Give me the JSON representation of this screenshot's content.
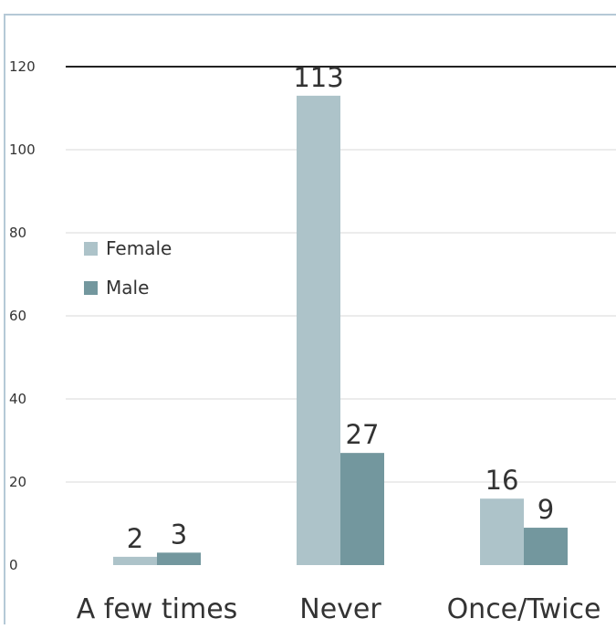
{
  "chart_data": {
    "type": "bar",
    "categories": [
      "A few times",
      "Never",
      "Once/Twice"
    ],
    "series": [
      {
        "name": "Female",
        "values": [
          2,
          113,
          16
        ],
        "color": "#adc3c9"
      },
      {
        "name": "Male",
        "values": [
          3,
          27,
          9
        ],
        "color": "#73979e"
      }
    ],
    "ylim": [
      0,
      120
    ],
    "yticks": [
      0,
      20,
      40,
      60,
      80,
      100,
      120
    ],
    "grid": true,
    "legend_position": "left, inside plot",
    "data_labels": true
  },
  "colors": {
    "frame": "#b5c9d6",
    "grid": "#d9d9d9",
    "axis_line": "#222222"
  }
}
